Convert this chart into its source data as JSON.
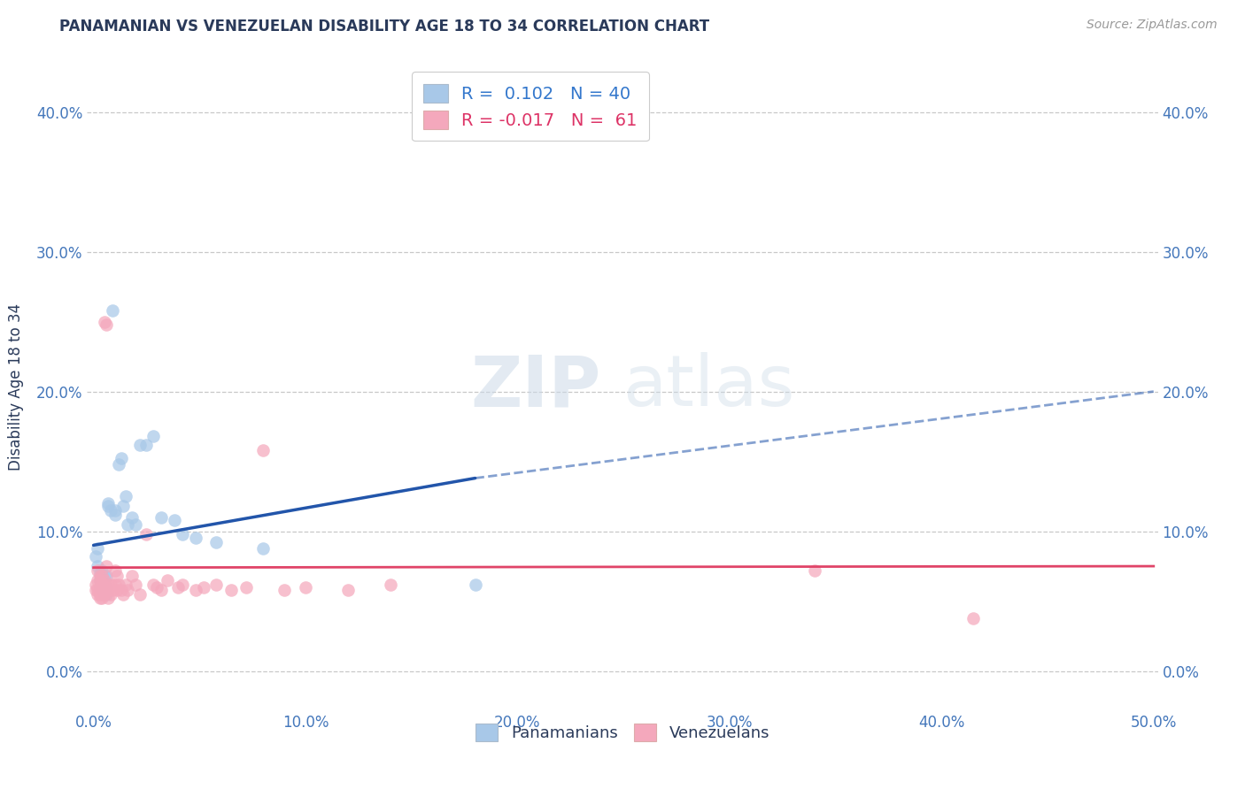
{
  "title": "PANAMANIAN VS VENEZUELAN DISABILITY AGE 18 TO 34 CORRELATION CHART",
  "source": "Source: ZipAtlas.com",
  "ylabel": "Disability Age 18 to 34",
  "watermark_zip": "ZIP",
  "watermark_atlas": "atlas",
  "xlim": [
    -0.003,
    0.502
  ],
  "ylim": [
    -0.028,
    0.435
  ],
  "xticks": [
    0.0,
    0.1,
    0.2,
    0.3,
    0.4,
    0.5
  ],
  "yticks": [
    0.0,
    0.1,
    0.2,
    0.3,
    0.4
  ],
  "panamanian_R": 0.102,
  "panamanian_N": 40,
  "venezuelan_R": -0.017,
  "venezuelan_N": 61,
  "pan_color": "#a8c8e8",
  "ven_color": "#f4a8bc",
  "pan_line_color": "#2255aa",
  "ven_line_color": "#e04468",
  "title_color": "#2a3a5a",
  "source_color": "#999999",
  "ylabel_color": "#2a3a5a",
  "tick_color": "#4477bb",
  "grid_color": "#bbbbbb",
  "legend_text_pan_color": "#3377cc",
  "legend_text_ven_color": "#dd3366",
  "legend_N_color": "#2a3a5a",
  "bottom_legend_color": "#2a3a5a",
  "pan_x": [
    0.001,
    0.002,
    0.002,
    0.003,
    0.003,
    0.003,
    0.004,
    0.004,
    0.004,
    0.004,
    0.005,
    0.005,
    0.005,
    0.005,
    0.006,
    0.006,
    0.006,
    0.007,
    0.007,
    0.008,
    0.009,
    0.01,
    0.01,
    0.012,
    0.013,
    0.014,
    0.015,
    0.016,
    0.018,
    0.02,
    0.022,
    0.025,
    0.028,
    0.032,
    0.038,
    0.042,
    0.048,
    0.058,
    0.08,
    0.18
  ],
  "pan_y": [
    0.082,
    0.088,
    0.075,
    0.07,
    0.065,
    0.06,
    0.068,
    0.062,
    0.072,
    0.058,
    0.068,
    0.058,
    0.055,
    0.062,
    0.068,
    0.06,
    0.055,
    0.118,
    0.12,
    0.115,
    0.258,
    0.115,
    0.112,
    0.148,
    0.152,
    0.118,
    0.125,
    0.105,
    0.11,
    0.105,
    0.162,
    0.162,
    0.168,
    0.11,
    0.108,
    0.098,
    0.095,
    0.092,
    0.088,
    0.062
  ],
  "ven_x": [
    0.001,
    0.001,
    0.002,
    0.002,
    0.002,
    0.002,
    0.003,
    0.003,
    0.003,
    0.003,
    0.003,
    0.003,
    0.004,
    0.004,
    0.004,
    0.004,
    0.004,
    0.005,
    0.005,
    0.005,
    0.005,
    0.006,
    0.006,
    0.006,
    0.007,
    0.007,
    0.007,
    0.008,
    0.008,
    0.009,
    0.01,
    0.01,
    0.011,
    0.011,
    0.012,
    0.013,
    0.014,
    0.015,
    0.016,
    0.018,
    0.02,
    0.022,
    0.025,
    0.028,
    0.03,
    0.032,
    0.035,
    0.04,
    0.042,
    0.048,
    0.052,
    0.058,
    0.065,
    0.072,
    0.08,
    0.09,
    0.1,
    0.12,
    0.14,
    0.34,
    0.415
  ],
  "ven_y": [
    0.062,
    0.058,
    0.072,
    0.058,
    0.065,
    0.055,
    0.068,
    0.06,
    0.055,
    0.065,
    0.058,
    0.052,
    0.068,
    0.058,
    0.055,
    0.062,
    0.052,
    0.065,
    0.058,
    0.055,
    0.25,
    0.248,
    0.075,
    0.06,
    0.062,
    0.058,
    0.052,
    0.062,
    0.055,
    0.058,
    0.072,
    0.062,
    0.058,
    0.068,
    0.062,
    0.058,
    0.055,
    0.062,
    0.058,
    0.068,
    0.062,
    0.055,
    0.098,
    0.062,
    0.06,
    0.058,
    0.065,
    0.06,
    0.062,
    0.058,
    0.06,
    0.062,
    0.058,
    0.06,
    0.158,
    0.058,
    0.06,
    0.058,
    0.062,
    0.072,
    0.038
  ],
  "pan_line_start_x": 0.0,
  "pan_line_solid_end_x": 0.18,
  "pan_line_dash_end_x": 0.5,
  "pan_line_start_y": 0.09,
  "pan_line_solid_end_y": 0.138,
  "pan_line_dash_end_y": 0.2,
  "ven_line_start_x": 0.0,
  "ven_line_end_x": 0.5,
  "ven_line_start_y": 0.074,
  "ven_line_end_y": 0.075
}
